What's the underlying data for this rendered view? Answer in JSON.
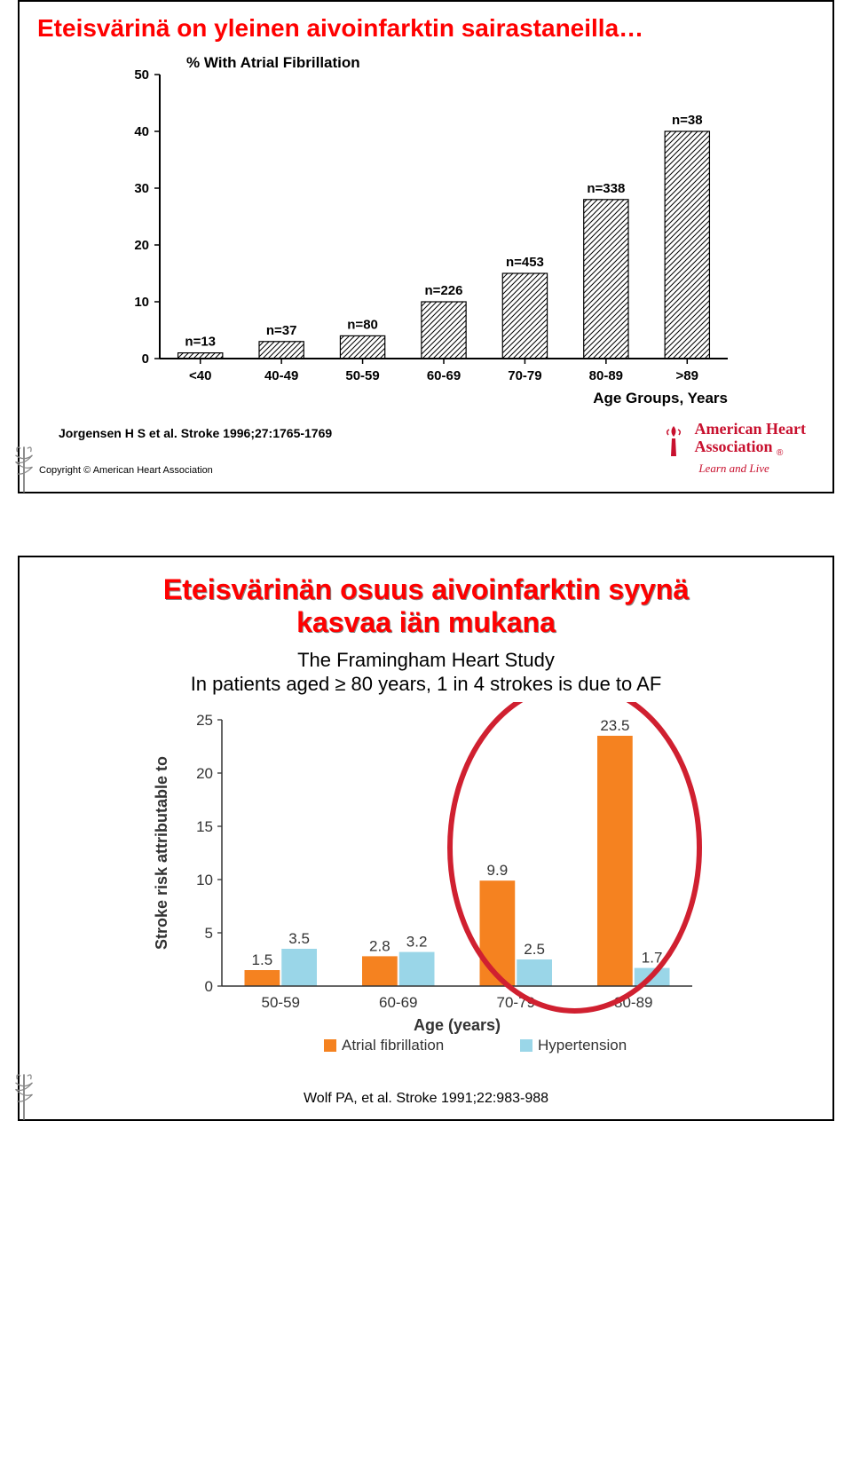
{
  "panel1": {
    "title": "Eteisvärinä on yleinen aivoinfarktin sairastaneilla…",
    "chart": {
      "type": "bar",
      "ylabel": "% With Atrial Fibrillation",
      "xlabel": "Age Groups, Years",
      "ylim": [
        0,
        50
      ],
      "ytick_step": 10,
      "categories": [
        "<40",
        "40-49",
        "50-59",
        "60-69",
        "70-79",
        "80-89",
        ">89"
      ],
      "values": [
        1,
        3,
        4,
        10,
        15,
        28,
        40
      ],
      "n_labels": [
        "n=13",
        "n=37",
        "n=80",
        "n=226",
        "n=453",
        "n=338",
        "n=38"
      ],
      "bar_fill": "hatched",
      "bar_border": "#000000",
      "axis_color": "#000000",
      "background_color": "#ffffff",
      "font_size_labels": 15,
      "tick_font_size": 15,
      "bar_width": 0.55
    },
    "citation": "Jorgensen H S et al. Stroke 1996;27:1765-1769",
    "copyright": "Copyright © American Heart Association",
    "aha": {
      "name_line1": "American Heart",
      "name_line2": "Association",
      "tagline": "Learn and Live",
      "trademark": "®"
    }
  },
  "panel2": {
    "title_line1": "Eteisvärinän osuus aivoinfarktin syynä",
    "title_line2": "kasvaa iän mukana",
    "subtitle_line1": "The Framingham Heart Study",
    "subtitle_line2": "In patients aged ≥ 80 years, 1 in 4 strokes is due to AF",
    "chart": {
      "type": "grouped-bar",
      "ylabel": "Stroke risk attributable to",
      "xlabel": "Age (years)",
      "ylim": [
        0,
        25
      ],
      "ytick_step": 5,
      "categories": [
        "50-59",
        "60-69",
        "70-79",
        "80-89"
      ],
      "series": [
        {
          "name": "Atrial fibrillation",
          "color": "#f58220",
          "values": [
            1.5,
            2.8,
            9.9,
            23.5
          ]
        },
        {
          "name": "Hypertension",
          "color": "#9ad6e8",
          "values": [
            3.5,
            3.2,
            2.5,
            1.7
          ]
        }
      ],
      "value_label_color": "#333333",
      "value_label_fontsize": 17,
      "axis_color": "#333333",
      "axis_label_fontsize": 18,
      "tick_fontsize": 17,
      "highlight": {
        "categories": [
          "70-79",
          "80-89"
        ],
        "stroke": "#d02030",
        "stroke_width": 6
      }
    },
    "footer": "Wolf PA, et al. Stroke 1991;22:983-988"
  }
}
